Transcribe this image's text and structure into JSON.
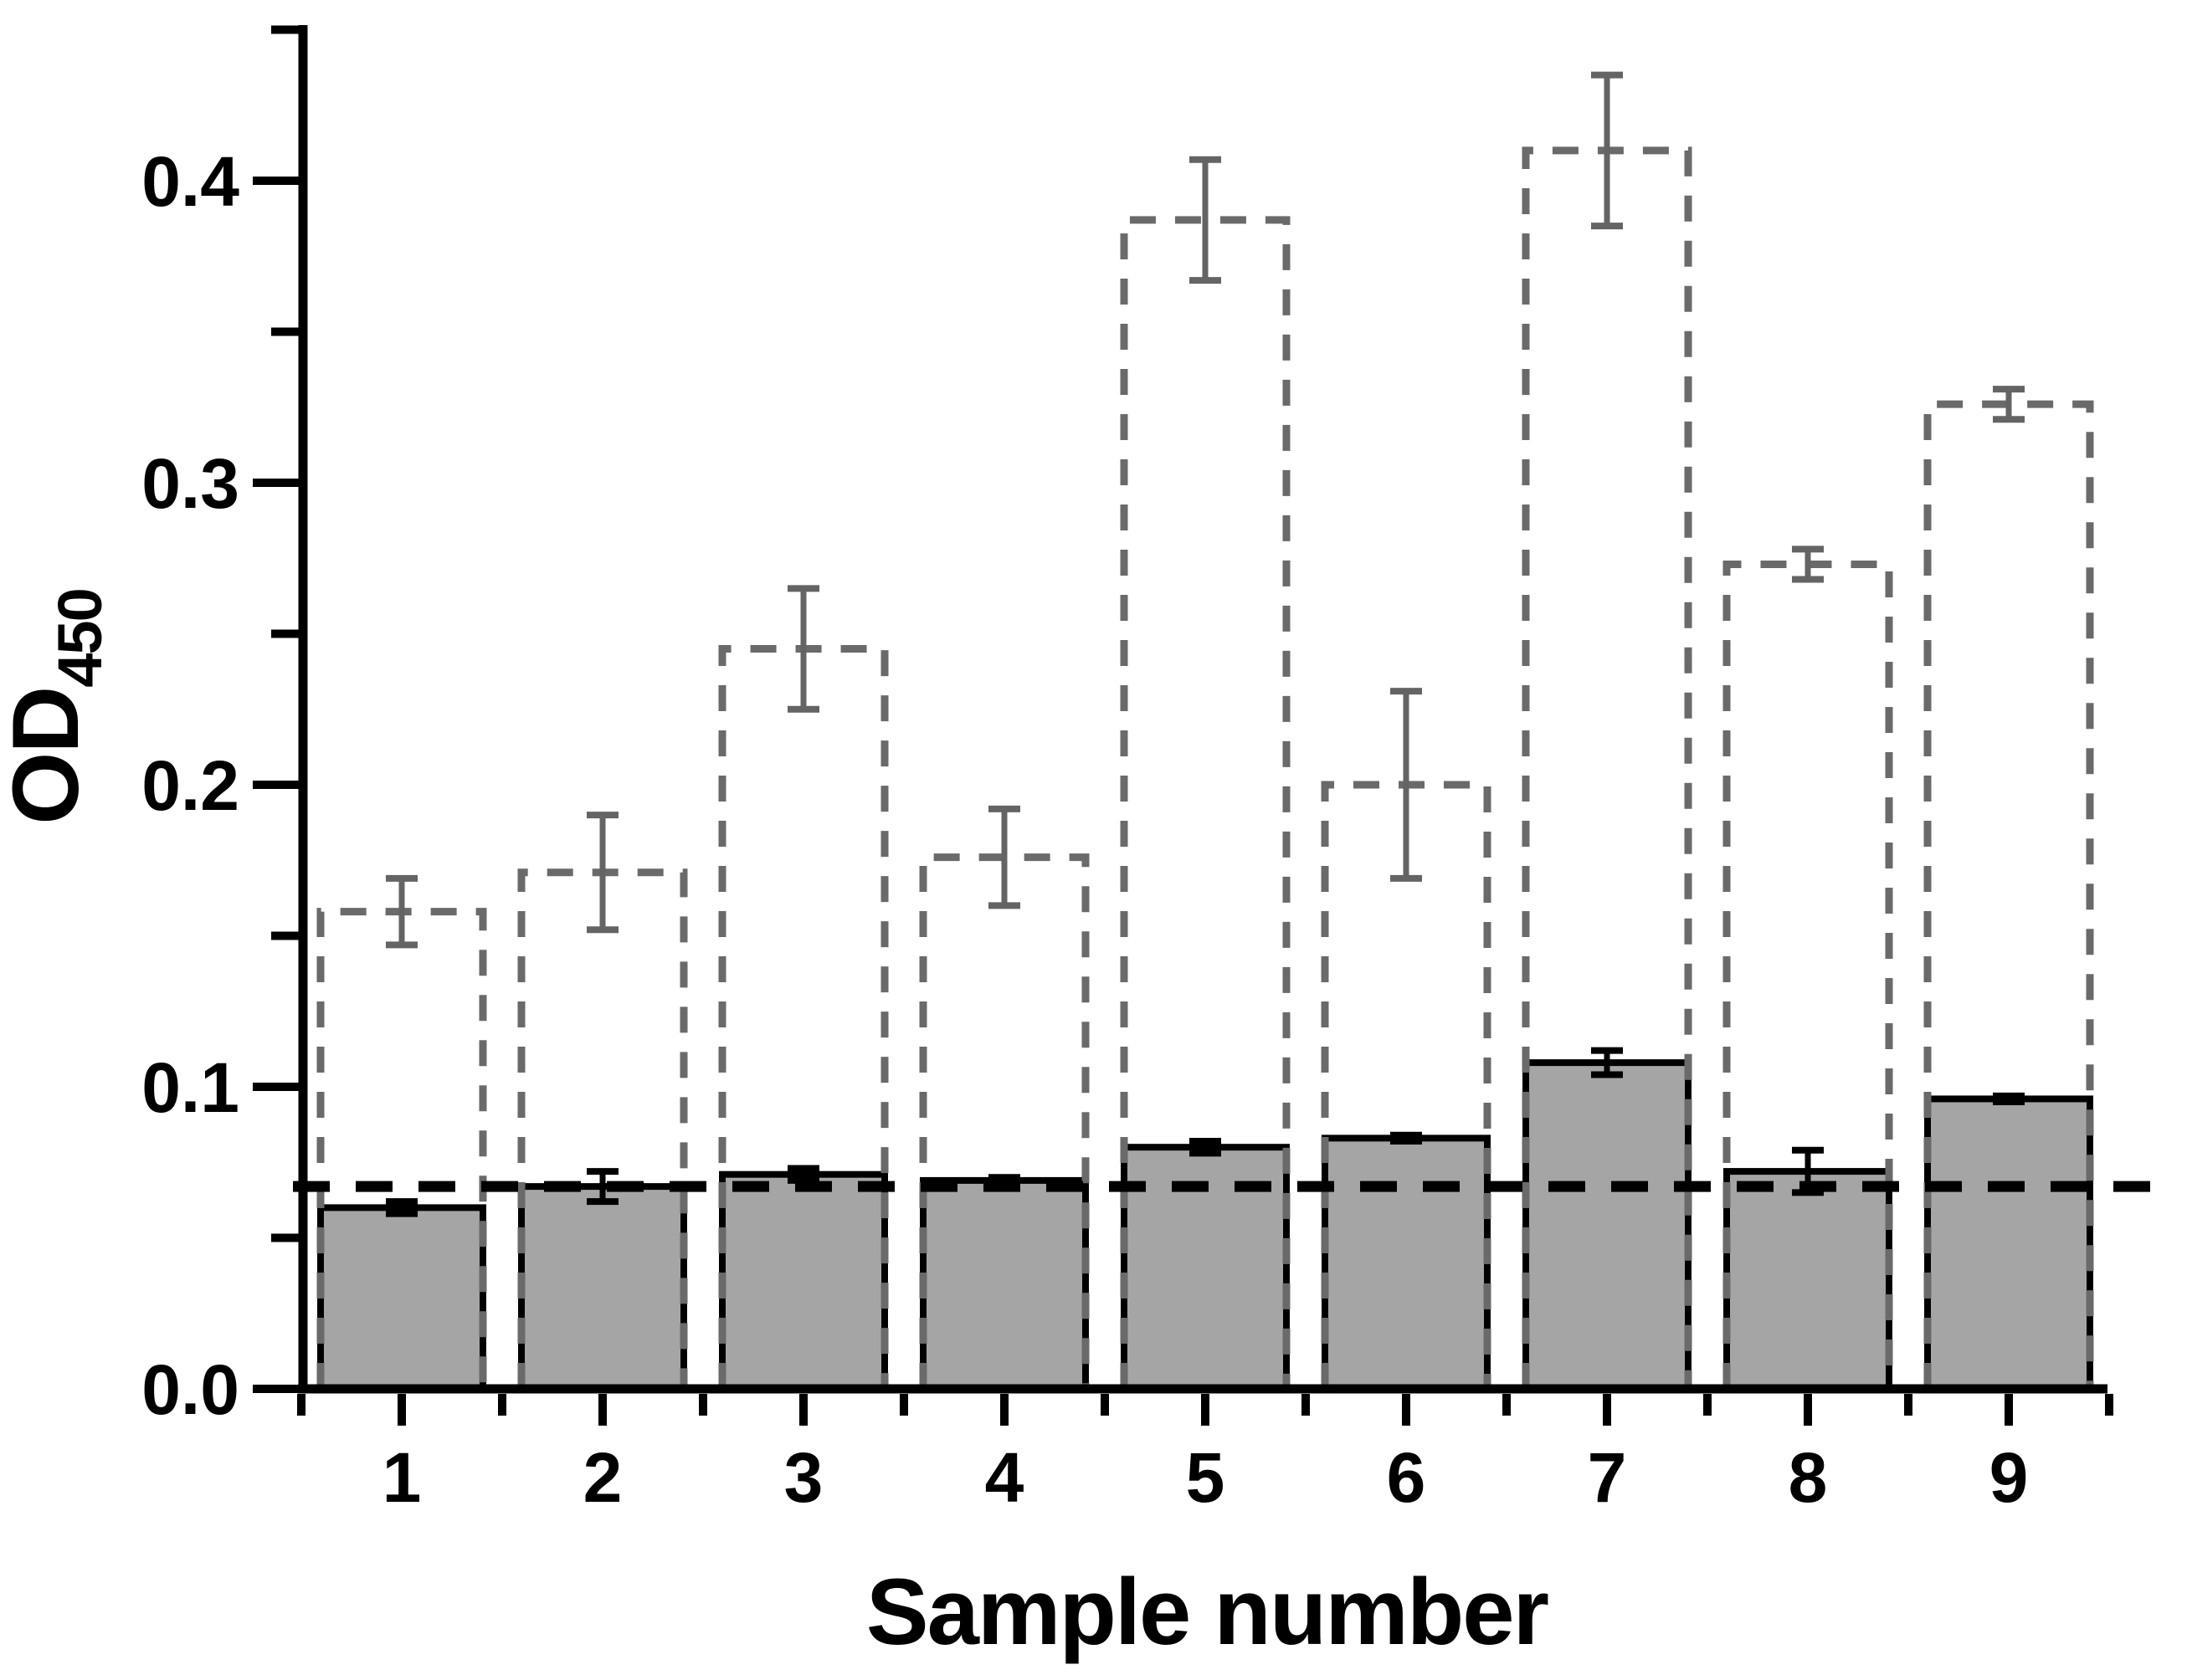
{
  "figure": {
    "background": "#ffffff",
    "kind": "scientific bar chart"
  },
  "chart_data": {
    "type": "bar",
    "title": "",
    "xlabel": "Sample number",
    "ylabel_main": "OD",
    "ylabel_sub": "450",
    "categories": [
      "1",
      "2",
      "3",
      "4",
      "5",
      "6",
      "7",
      "8",
      "9"
    ],
    "series": [
      {
        "name": "dashed-open-bars",
        "style": "dashed-outline",
        "color": "#6a6a6a",
        "error_color": "#646464",
        "values": [
          0.158,
          0.171,
          0.245,
          0.176,
          0.387,
          0.2,
          0.41,
          0.273,
          0.326
        ],
        "errors": [
          0.011,
          0.019,
          0.02,
          0.016,
          0.02,
          0.031,
          0.025,
          0.005,
          0.005
        ]
      },
      {
        "name": "solid-gray-bars",
        "style": "solid-fill",
        "fill": "#a5a5a5",
        "edge": "#000000",
        "error_color": "#000000",
        "values": [
          0.06,
          0.067,
          0.071,
          0.069,
          0.08,
          0.083,
          0.108,
          0.072,
          0.096
        ],
        "errors": [
          0.002,
          0.005,
          0.002,
          0.001,
          0.002,
          0.001,
          0.004,
          0.007,
          0.001
        ]
      }
    ],
    "reference_line": {
      "value": 0.067,
      "color": "#000000",
      "style": "dashed"
    },
    "y_axis": {
      "min": 0.0,
      "max": 0.45,
      "major_step": 0.1,
      "minor_step": 0.05,
      "tick_labels": [
        "0.0",
        "0.1",
        "0.2",
        "0.3",
        "0.4"
      ]
    },
    "x_axis": {
      "tick_labels": [
        "1",
        "2",
        "3",
        "4",
        "5",
        "6",
        "7",
        "8",
        "9"
      ]
    },
    "grid": false,
    "legend": false
  }
}
